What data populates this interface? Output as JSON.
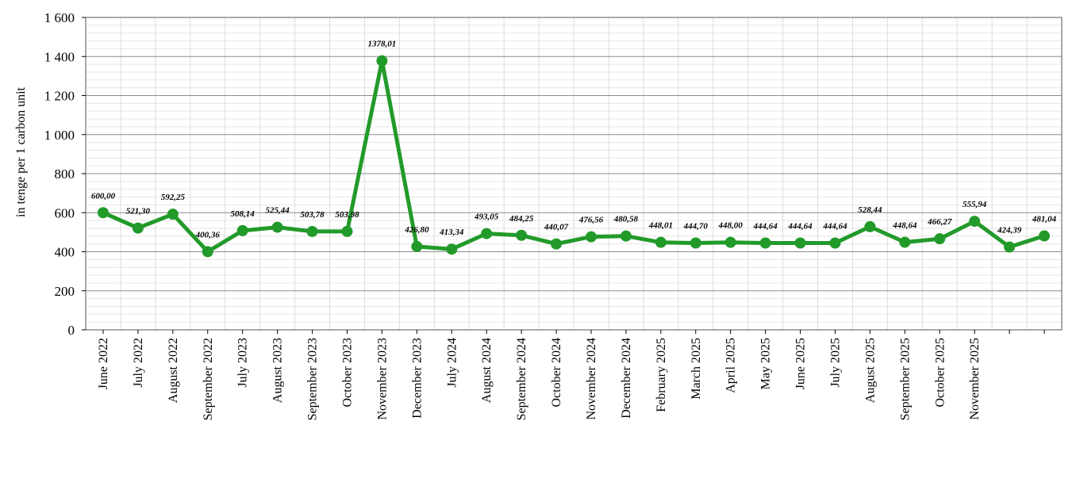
{
  "chart_data": {
    "type": "line",
    "ylabel": "in tenge per 1 carbon unit",
    "xlabel": "",
    "ylim": [
      0,
      1600
    ],
    "yticks": [
      0,
      200,
      400,
      600,
      800,
      1000,
      1200,
      1400,
      1600
    ],
    "ytick_labels": [
      "0",
      "200",
      "400",
      "600",
      "800",
      "1 000",
      "1 200",
      "1 400",
      "1 600"
    ],
    "grid": true,
    "legend": "none",
    "line_color": "#229a2a",
    "x_labels": [
      "June 2022",
      "July 2022",
      "August 2022",
      "September 2022",
      "July 2023",
      "August 2023",
      "September 2023",
      "October 2023",
      "November 2023",
      "December 2023",
      "July 2024",
      "August 2024",
      "September 2024",
      "October 2024",
      "November 2024",
      "December 2024",
      "February 2025",
      "March 2025",
      "April 2025",
      "May 2025",
      "June 2025",
      "July 2025",
      "August 2025",
      "September 2025",
      "October 2025",
      "November 2025",
      "",
      ""
    ],
    "values": [
      600.0,
      521.3,
      592.25,
      400.36,
      508.14,
      525.44,
      503.78,
      503.98,
      1378.01,
      426.8,
      413.34,
      493.05,
      484.25,
      440.07,
      476.56,
      480.58,
      448.01,
      444.7,
      448.0,
      444.64,
      444.64,
      444.64,
      528.44,
      448.64,
      466.27,
      555.94,
      424.39,
      481.04
    ],
    "value_labels": [
      "600,00",
      "521,30",
      "592,25",
      "400,36",
      "508,14",
      "525,44",
      "503,78",
      "503,98",
      "1378,01",
      "426,80",
      "413,34",
      "493,05",
      "484,25",
      "440,07",
      "476,56",
      "480,58",
      "448,01",
      "444,70",
      "448,00",
      "444,64",
      "444,64",
      "444,64",
      "528,44",
      "448,64",
      "466,27",
      "555,94",
      "424,39",
      "481,04"
    ]
  }
}
